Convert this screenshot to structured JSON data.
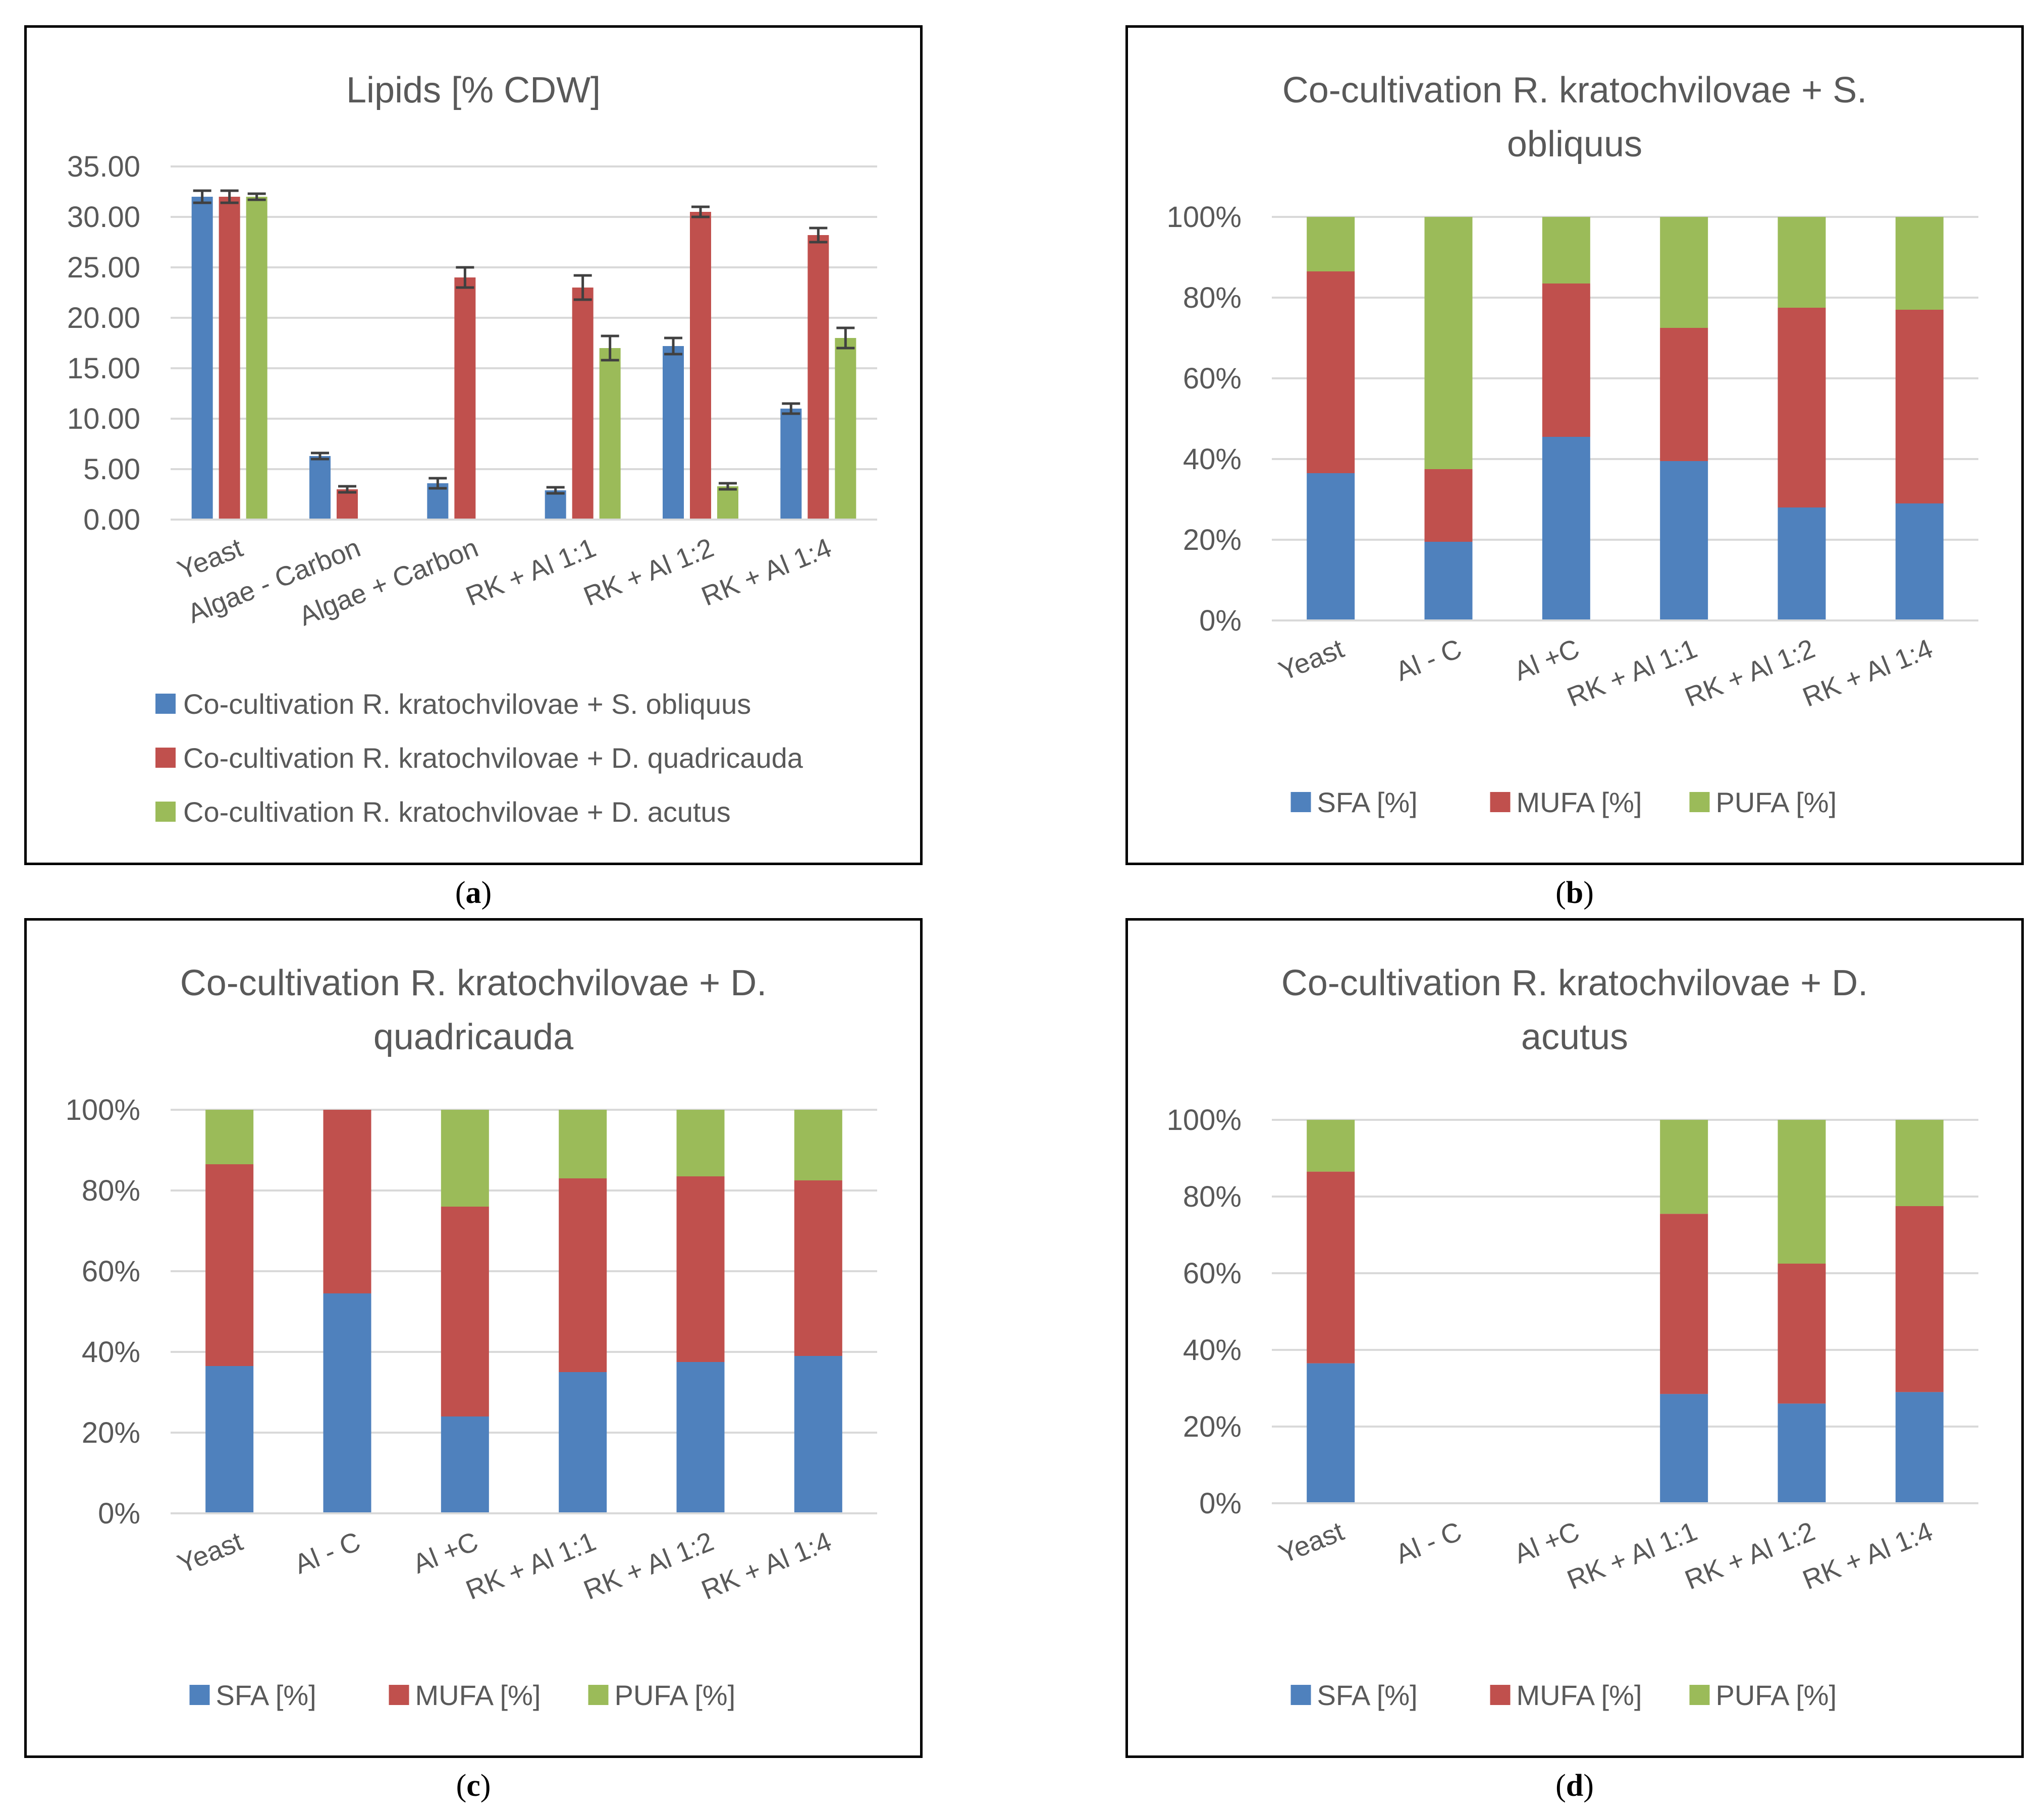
{
  "colors": {
    "blue": "#4F81BD",
    "red": "#C0504D",
    "green": "#9BBB59",
    "grid": "#D9D9D9",
    "err": "#404040"
  },
  "chart_data": [
    {
      "type": "bar",
      "panel_label": "a",
      "title": "Lipids  [% CDW]",
      "categories": [
        "Yeast",
        "Algae - Carbon",
        "Algae + Carbon",
        "RK + Al 1:1",
        "RK + Al 1:2",
        "RK + Al 1:4"
      ],
      "yticks": [
        "0.00",
        "5.00",
        "10.00",
        "15.00",
        "20.00",
        "25.00",
        "30.00",
        "35.00"
      ],
      "ylim": [
        0,
        35
      ],
      "series": [
        {
          "name": "Co-cultivation R. kratochvilovae + S. obliquus",
          "color": "#4F81BD",
          "values": [
            32.0,
            6.3,
            3.6,
            2.9,
            17.2,
            11.0
          ],
          "errors": [
            0.6,
            0.3,
            0.5,
            0.3,
            0.8,
            0.5
          ]
        },
        {
          "name": "Co-cultivation R. kratochvilovae + D. quadricauda",
          "color": "#C0504D",
          "values": [
            32.0,
            3.0,
            24.0,
            23.0,
            30.5,
            28.2
          ],
          "errors": [
            0.6,
            0.3,
            1.0,
            1.2,
            0.5,
            0.7
          ]
        },
        {
          "name": "Co-cultivation R. kratochvilovae + D. acutus",
          "color": "#9BBB59",
          "values": [
            32.0,
            null,
            null,
            17.0,
            3.3,
            18.0
          ],
          "errors": [
            0.3,
            null,
            null,
            1.2,
            0.3,
            1.0
          ]
        }
      ]
    },
    {
      "type": "bar",
      "stacked": true,
      "panel_label": "b",
      "title_lines": [
        "Co-cultivation R. kratochvilovae + S.",
        "obliquus"
      ],
      "categories": [
        "Yeast",
        "Al - C",
        "Al +C",
        "RK + Al 1:1",
        "RK + Al 1:2",
        "RK + Al 1:4"
      ],
      "yticks": [
        "0%",
        "20%",
        "40%",
        "60%",
        "80%",
        "100%"
      ],
      "ylim": [
        0,
        100
      ],
      "series": [
        {
          "name": "SFA [%]",
          "color": "#4F81BD",
          "values": [
            36.5,
            19.5,
            45.5,
            39.5,
            28,
            29
          ]
        },
        {
          "name": "MUFA [%]",
          "color": "#C0504D",
          "values": [
            50,
            18,
            38,
            33,
            49.5,
            48
          ]
        },
        {
          "name": "PUFA [%]",
          "color": "#9BBB59",
          "values": [
            13.5,
            62.5,
            16.5,
            27.5,
            22.5,
            23
          ]
        }
      ]
    },
    {
      "type": "bar",
      "stacked": true,
      "panel_label": "c",
      "title_lines": [
        "Co-cultivation R. kratochvilovae + D.",
        "quadricauda"
      ],
      "categories": [
        "Yeast",
        "Al - C",
        "Al +C",
        "RK + Al 1:1",
        "RK + Al 1:2",
        "RK + Al 1:4"
      ],
      "yticks": [
        "0%",
        "20%",
        "40%",
        "60%",
        "80%",
        "100%"
      ],
      "ylim": [
        0,
        100
      ],
      "series": [
        {
          "name": "SFA [%]",
          "color": "#4F81BD",
          "values": [
            36.5,
            54.5,
            24,
            35,
            37.5,
            39
          ]
        },
        {
          "name": "MUFA [%]",
          "color": "#C0504D",
          "values": [
            50,
            45.5,
            52,
            48,
            46,
            43.5
          ]
        },
        {
          "name": "PUFA [%]",
          "color": "#9BBB59",
          "values": [
            13.5,
            0,
            24,
            17,
            16.5,
            17.5
          ]
        }
      ]
    },
    {
      "type": "bar",
      "stacked": true,
      "panel_label": "d",
      "title_lines": [
        "Co-cultivation R. kratochvilovae + D.",
        "acutus"
      ],
      "categories": [
        "Yeast",
        "Al - C",
        "Al +C",
        "RK + Al 1:1",
        "RK + Al 1:2",
        "RK + Al 1:4"
      ],
      "yticks": [
        "0%",
        "20%",
        "40%",
        "60%",
        "80%",
        "100%"
      ],
      "ylim": [
        0,
        100
      ],
      "series": [
        {
          "name": "SFA [%]",
          "color": "#4F81BD",
          "values": [
            36.5,
            null,
            null,
            28.5,
            26,
            29
          ]
        },
        {
          "name": "MUFA [%]",
          "color": "#C0504D",
          "values": [
            50,
            null,
            null,
            47,
            36.5,
            48.5
          ]
        },
        {
          "name": "PUFA [%]",
          "color": "#9BBB59",
          "values": [
            13.5,
            null,
            null,
            24.5,
            37.5,
            22.5
          ]
        }
      ]
    }
  ]
}
